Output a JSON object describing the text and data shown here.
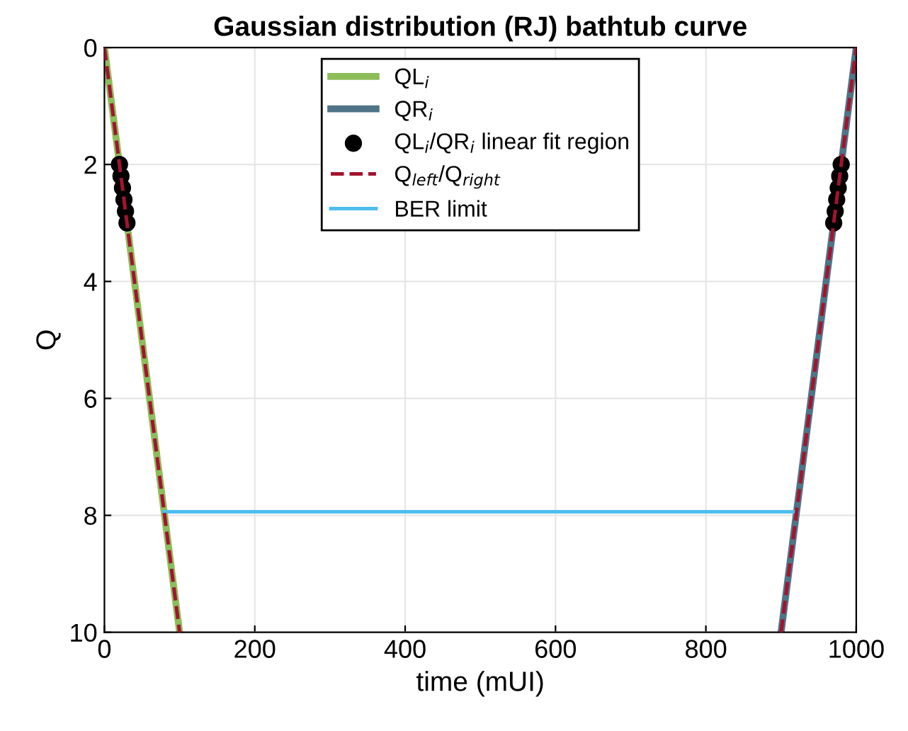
{
  "chart_data": {
    "type": "line",
    "title": "Gaussian distribution (RJ) bathtub curve",
    "xlabel": "time (mUI)",
    "ylabel": "Q",
    "xlim": [
      0,
      1000
    ],
    "xticks": [
      0,
      200,
      400,
      600,
      800,
      1000
    ],
    "ylim": [
      10,
      0
    ],
    "yticks": [
      0,
      2,
      4,
      6,
      8,
      10
    ],
    "grid": true,
    "legend": "top",
    "series": [
      {
        "name": "QL$_{i}$",
        "color": "#8dbd5a",
        "x": [
          0,
          100
        ],
        "values": [
          0,
          10
        ],
        "line_style": "solid"
      },
      {
        "name": "QR$_{i}$",
        "color": "#507487",
        "x": [
          900,
          1000
        ],
        "values": [
          10,
          0
        ],
        "line_style": "solid"
      },
      {
        "name": "QL$_{i}$/QR$_{i}$ linear fit region",
        "color": "#000000",
        "type": "scatter",
        "marker": "circle",
        "x": [
          20,
          22,
          24,
          26,
          28,
          30,
          970,
          972,
          974,
          976,
          978,
          980
        ],
        "values": [
          2,
          2.2,
          2.4,
          2.6,
          2.8,
          3,
          3,
          2.8,
          2.6,
          2.4,
          2.2,
          2
        ]
      },
      {
        "name": "Q$_{left}$/Q$_{right}$",
        "color": "#a2142f",
        "x": [
          0,
          100,
          null,
          900,
          1000
        ],
        "values": [
          0,
          10,
          null,
          10,
          0
        ],
        "line_style": "dashed"
      },
      {
        "name": "BER limit",
        "color": "#4dbeee",
        "x": [
          79.4,
          920.6
        ],
        "values": [
          7.94,
          7.94
        ],
        "line_style": "solid"
      }
    ]
  }
}
